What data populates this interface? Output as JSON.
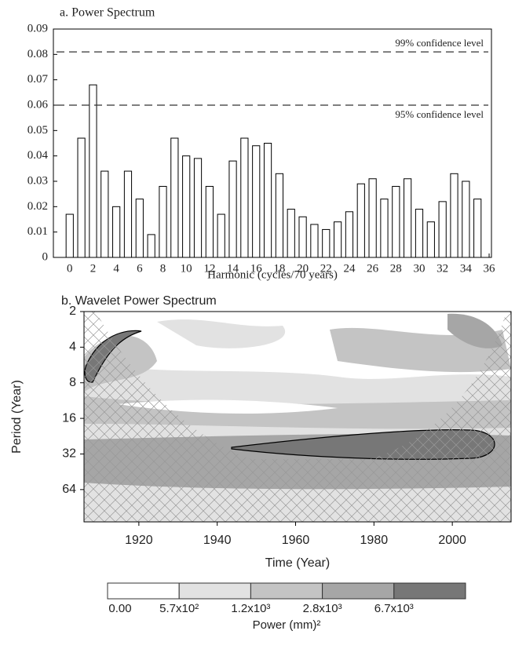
{
  "chart_data": [
    {
      "type": "bar",
      "title": "a. Power Spectrum",
      "xlabel": "Harmonic (cycles/70 years)",
      "x": [
        0,
        1,
        2,
        3,
        4,
        5,
        6,
        7,
        8,
        9,
        10,
        11,
        12,
        13,
        14,
        15,
        16,
        17,
        18,
        19,
        20,
        21,
        22,
        23,
        24,
        25,
        26,
        27,
        28,
        29,
        30,
        31,
        32,
        33,
        34,
        35
      ],
      "values": [
        0.017,
        0.047,
        0.068,
        0.034,
        0.02,
        0.034,
        0.023,
        0.009,
        0.028,
        0.047,
        0.04,
        0.039,
        0.028,
        0.017,
        0.038,
        0.047,
        0.044,
        0.045,
        0.033,
        0.019,
        0.016,
        0.013,
        0.011,
        0.014,
        0.018,
        0.029,
        0.031,
        0.023,
        0.028,
        0.031,
        0.019,
        0.014,
        0.022,
        0.033,
        0.03,
        0.023
      ],
      "color": "#ffffff",
      "xlim": [
        -1.4,
        36.2
      ],
      "xticks": [
        0,
        2,
        4,
        6,
        8,
        10,
        12,
        14,
        16,
        18,
        20,
        22,
        24,
        26,
        28,
        30,
        32,
        34,
        36
      ],
      "ylim": [
        0,
        0.09
      ],
      "yticks": [
        0,
        0.01,
        0.02,
        0.03,
        0.04,
        0.05,
        0.06,
        0.07,
        0.08,
        0.09
      ],
      "reference_lines": [
        {
          "value": 0.081,
          "label": "99% confidence level"
        },
        {
          "value": 0.06,
          "label": "95% confidence level"
        }
      ]
    },
    {
      "type": "contour",
      "title": "b. Wavelet Power Spectrum",
      "xlabel": "Time (Year)",
      "ylabel": "Period (Year)",
      "xlim": [
        1906,
        2015
      ],
      "xticks": [
        1920,
        1940,
        1960,
        1980,
        2000
      ],
      "ylim": [
        2,
        120
      ],
      "yticks": [
        2,
        4,
        8,
        16,
        32,
        64
      ],
      "y_log": true,
      "y_inverted": true,
      "colorbar": {
        "title": "Power (mm)²",
        "labels": [
          "0.00",
          "5.7x10²",
          "1.2x10³",
          "2.8x10³",
          "6.7x10³"
        ],
        "colors": [
          "#ffffff",
          "#e2e2e2",
          "#c4c4c4",
          "#a6a6a6",
          "#777777"
        ]
      }
    }
  ]
}
